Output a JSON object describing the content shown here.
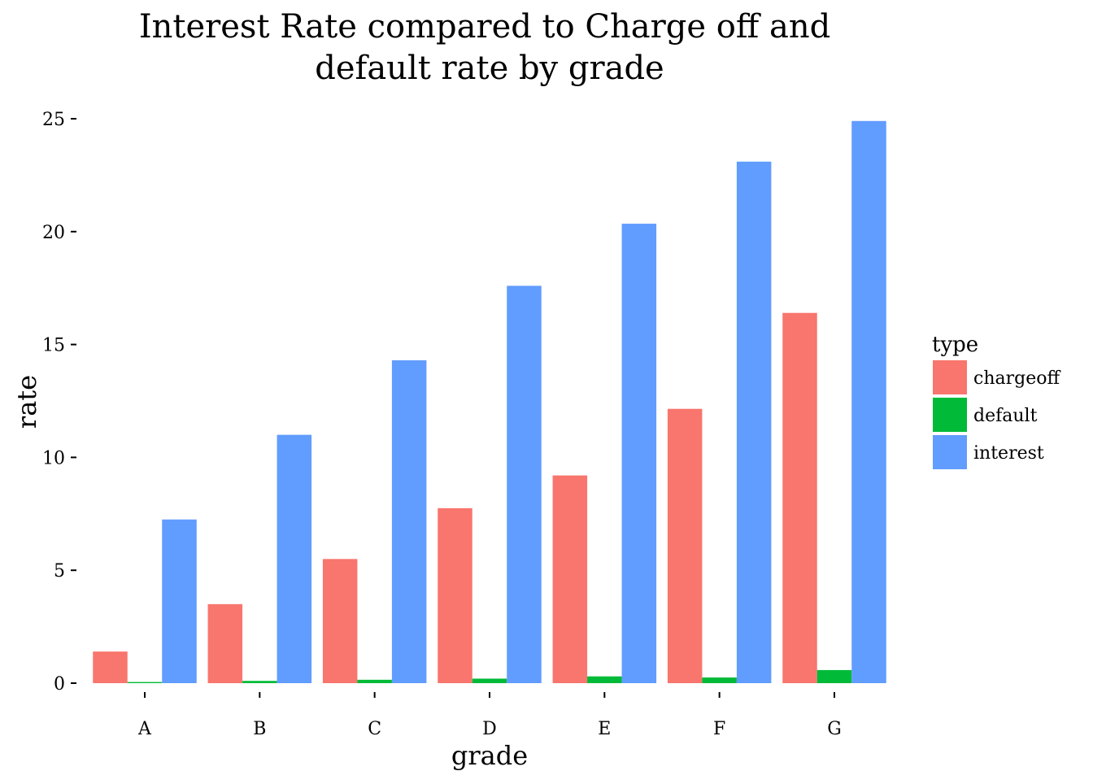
{
  "chart_data": {
    "type": "bar",
    "title": "Interest Rate compared to Charge off and default rate by grade",
    "title_lines": [
      "Interest Rate compared to Charge off and",
      "default rate by grade"
    ],
    "xlabel": "grade",
    "ylabel": "rate",
    "categories": [
      "A",
      "B",
      "C",
      "D",
      "E",
      "F",
      "G"
    ],
    "ylim": [
      0,
      25
    ],
    "yticks": [
      0,
      5,
      10,
      15,
      20,
      25
    ],
    "grid": false,
    "legend": {
      "title": "type",
      "position": "right"
    },
    "series": [
      {
        "name": "chargeoff",
        "color": "#F8766D",
        "values": [
          1.4,
          3.5,
          5.5,
          7.75,
          9.2,
          12.15,
          16.4
        ]
      },
      {
        "name": "default",
        "color": "#00BA38",
        "values": [
          0.05,
          0.1,
          0.15,
          0.2,
          0.3,
          0.25,
          0.58
        ]
      },
      {
        "name": "interest",
        "color": "#619CFF",
        "values": [
          7.25,
          11.0,
          14.3,
          17.6,
          20.35,
          23.1,
          24.9
        ]
      }
    ]
  }
}
